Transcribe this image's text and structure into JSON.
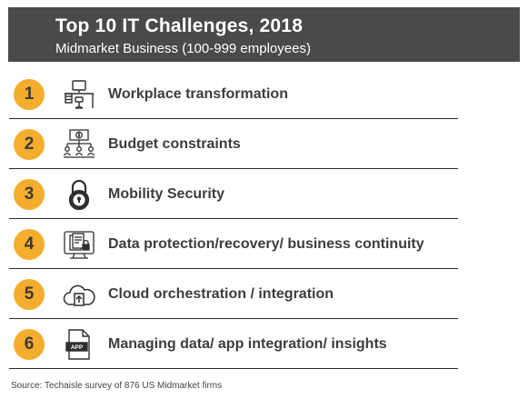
{
  "header": {
    "title": "Top 10 IT Challenges, 2018",
    "subtitle": "Midmarket Business (100-999 employees)"
  },
  "items": [
    {
      "rank": "1",
      "label": "Workplace transformation",
      "icon": "workstation-icon"
    },
    {
      "rank": "2",
      "label": "Budget constraints",
      "icon": "budget-hierarchy-icon"
    },
    {
      "rank": "3",
      "label": "Mobility Security",
      "icon": "padlock-icon"
    },
    {
      "rank": "4",
      "label": "Data protection/recovery/ business continuity",
      "icon": "document-lock-icon"
    },
    {
      "rank": "5",
      "label": "Cloud orchestration / integration",
      "icon": "cloud-upload-icon"
    },
    {
      "rank": "6",
      "label": "Managing data/ app integration/ insights",
      "icon": "app-file-icon"
    }
  ],
  "icon_text": {
    "app": "APP"
  },
  "source": "Source: Techaisle survey of 876 US Midmarket firms",
  "colors": {
    "header_bg": "#4a4a4a",
    "badge": "#f5ad2d",
    "text": "#3d3d3d",
    "divider": "#2b2b2b"
  }
}
